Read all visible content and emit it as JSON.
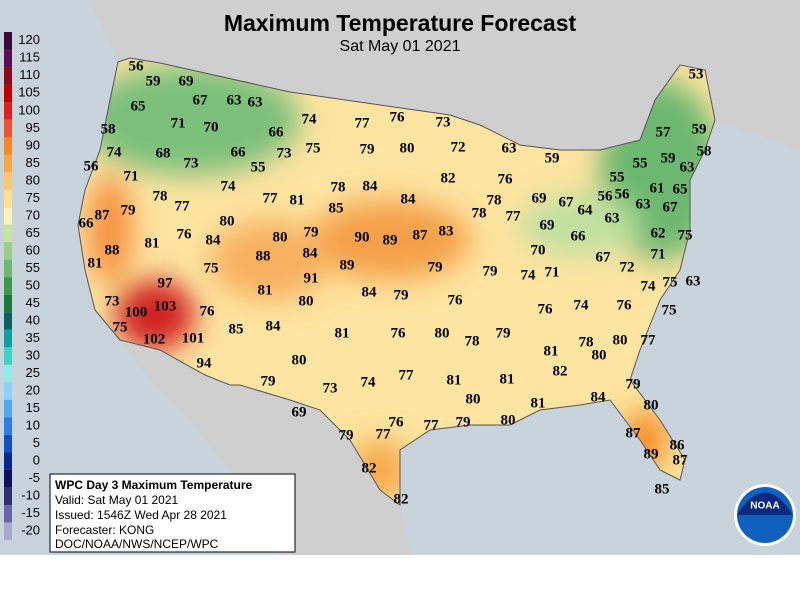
{
  "map": {
    "title": "Maximum Temperature Forecast",
    "subtitle": "Sat May 01 2021",
    "scale": [
      {
        "value": 120,
        "color": "#3a0a3a"
      },
      {
        "value": 115,
        "color": "#5c0f55"
      },
      {
        "value": 110,
        "color": "#8a0a1a"
      },
      {
        "value": 105,
        "color": "#c00000"
      },
      {
        "value": 100,
        "color": "#e02020"
      },
      {
        "value": 95,
        "color": "#f05030"
      },
      {
        "value": 90,
        "color": "#f58a20"
      },
      {
        "value": 85,
        "color": "#f8a848"
      },
      {
        "value": 80,
        "color": "#fbc870"
      },
      {
        "value": 75,
        "color": "#fde090"
      },
      {
        "value": 70,
        "color": "#fdf0b8"
      },
      {
        "value": 65,
        "color": "#c8e6a0"
      },
      {
        "value": 60,
        "color": "#98d088"
      },
      {
        "value": 55,
        "color": "#6cb870"
      },
      {
        "value": 50,
        "color": "#3c9a50"
      },
      {
        "value": 45,
        "color": "#1a7a3a"
      },
      {
        "value": 40,
        "color": "#0a6060"
      },
      {
        "value": 35,
        "color": "#10a0a0"
      },
      {
        "value": 30,
        "color": "#40d0c8"
      },
      {
        "value": 25,
        "color": "#90ece8"
      },
      {
        "value": 20,
        "color": "#90d0f8"
      },
      {
        "value": 15,
        "color": "#50a8f0"
      },
      {
        "value": 10,
        "color": "#2880e8"
      },
      {
        "value": 5,
        "color": "#1050c0"
      },
      {
        "value": 0,
        "color": "#082890"
      },
      {
        "value": -5,
        "color": "#101060"
      },
      {
        "value": -10,
        "color": "#303070"
      },
      {
        "value": -15,
        "color": "#6868a8"
      },
      {
        "value": -20,
        "color": "#a8a8d0"
      }
    ],
    "temperatures": [
      56,
      59,
      69,
      67,
      63,
      63,
      65,
      71,
      70,
      66,
      74,
      77,
      76,
      73,
      58,
      74,
      68,
      66,
      73,
      75,
      79,
      80,
      72,
      63,
      59,
      56,
      71,
      73,
      55,
      74,
      82,
      76,
      78,
      77,
      77,
      81,
      78,
      84,
      84,
      78,
      69,
      67,
      64,
      55,
      56,
      56,
      61,
      65,
      53,
      57,
      59,
      55,
      59,
      63,
      58,
      63,
      63,
      67,
      87,
      66,
      79,
      80,
      85,
      78,
      77,
      69,
      66,
      62,
      75,
      88,
      81,
      76,
      84,
      80,
      79,
      90,
      89,
      87,
      83,
      70,
      84,
      88,
      81,
      75,
      89,
      79,
      79,
      74,
      71,
      67,
      72,
      71,
      97,
      91,
      81,
      84,
      79,
      76,
      74,
      75,
      63,
      73,
      103,
      76,
      80,
      76,
      74,
      76,
      75,
      100,
      75,
      85,
      84,
      81,
      76,
      80,
      78,
      79,
      102,
      101,
      81,
      78,
      80,
      80,
      77,
      94,
      80,
      82,
      74,
      77,
      79,
      73,
      81,
      81,
      79,
      80,
      81,
      84,
      69,
      80,
      80,
      79,
      79,
      77,
      76,
      77,
      87,
      86,
      89,
      87,
      82,
      85,
      82
    ]
  },
  "info_box": {
    "lines": [
      "WPC Day 3 Maximum Temperature",
      "Valid: Sat May 01 2021",
      "Issued: 1546Z Wed Apr 28 2021",
      "Forecaster: KONG",
      "DOC/NOAA/NWS/NCEP/WPC"
    ]
  },
  "logo": "NOAA"
}
